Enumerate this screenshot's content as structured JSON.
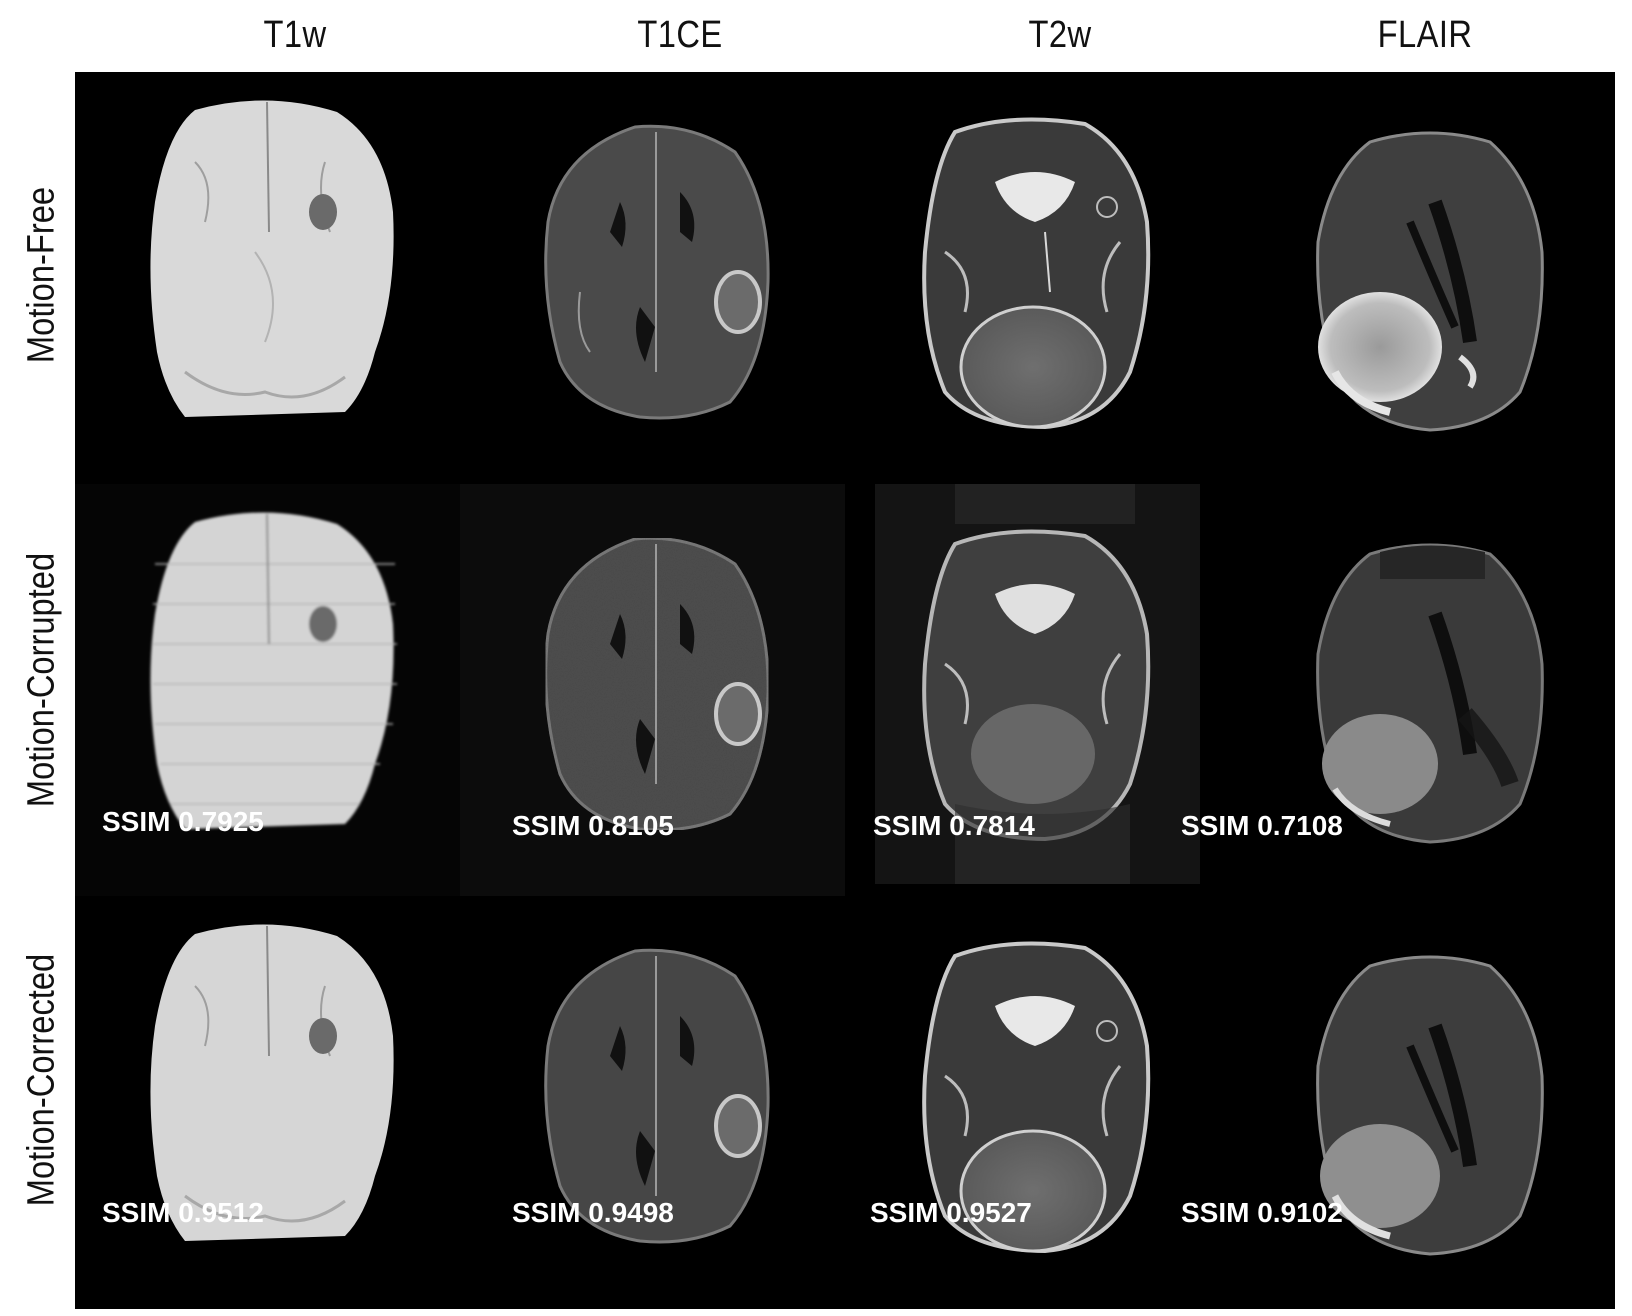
{
  "columns": [
    "T1w",
    "T1CE",
    "T2w",
    "FLAIR"
  ],
  "rows": [
    "Motion-Free",
    "Motion-Corrupted",
    "Motion-Corrected"
  ],
  "ssim": {
    "corrupted": [
      "SSIM 0.7925",
      "SSIM 0.8105",
      "SSIM 0.7814",
      "SSIM 0.7108"
    ],
    "corrected": [
      "SSIM 0.9512",
      "SSIM 0.9498",
      "SSIM 0.9527",
      "SSIM 0.9102"
    ]
  },
  "images": {
    "t1w": "brain-mri-t1w",
    "t1ce": "brain-mri-t1ce",
    "t2w": "brain-mri-t2w",
    "flair": "brain-mri-flair"
  },
  "colors": {
    "background": "#000000",
    "label_text": "#111111",
    "ssim_text": "#ffffff"
  }
}
